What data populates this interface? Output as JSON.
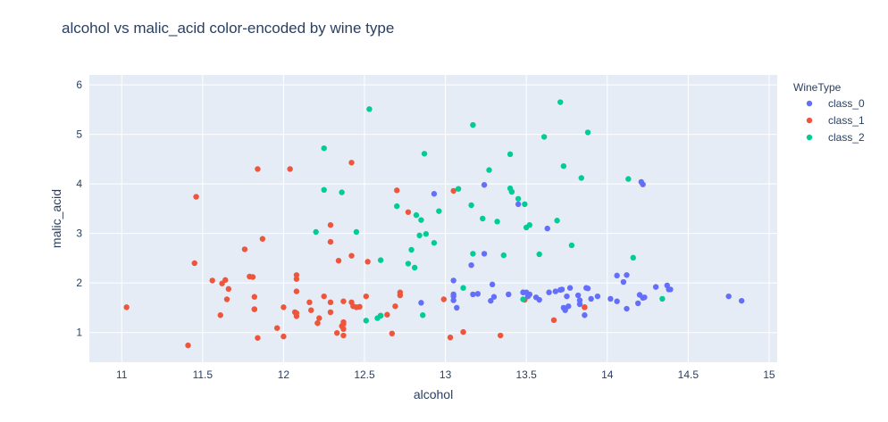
{
  "chart_data": {
    "type": "scatter",
    "title": "alcohol vs malic_acid color-encoded by wine type",
    "xlabel": "alcohol",
    "ylabel": "malic_acid",
    "xlim": [
      10.8,
      15.05
    ],
    "ylim": [
      0.4,
      6.2
    ],
    "xticks": [
      11,
      11.5,
      12,
      12.5,
      13,
      13.5,
      14,
      14.5,
      15
    ],
    "yticks": [
      1,
      2,
      3,
      4,
      5,
      6
    ],
    "grid": true,
    "legend": {
      "title": "WineType",
      "placement": "right"
    },
    "colors": {
      "class_0": "#636efa",
      "class_1": "#ef553b",
      "class_2": "#00cc96",
      "plot_bg": "#e5ecf6",
      "grid": "#ffffff",
      "text": "#2a3f5f"
    },
    "series": [
      {
        "name": "class_0",
        "x": [
          12.93,
          13.05,
          13.05,
          13.05,
          13.07,
          13.16,
          13.2,
          13.24,
          13.24,
          13.28,
          13.29,
          13.3,
          13.39,
          13.41,
          13.48,
          13.5,
          13.51,
          13.56,
          13.58,
          13.63,
          13.64,
          13.68,
          13.71,
          13.72,
          13.73,
          13.74,
          13.75,
          13.76,
          13.77,
          13.82,
          13.83,
          13.83,
          13.86,
          13.86,
          13.87,
          13.88,
          13.9,
          13.94,
          14.02,
          14.06,
          14.06,
          14.1,
          14.12,
          14.12,
          14.19,
          14.2,
          14.21,
          14.22,
          14.22,
          14.23,
          14.3,
          14.37,
          14.38,
          14.39,
          14.75,
          14.83,
          12.85,
          13.05,
          13.17,
          13.45,
          13.48,
          13.52
        ],
        "y": [
          3.8,
          1.65,
          1.73,
          2.05,
          1.5,
          2.36,
          1.78,
          2.59,
          3.98,
          1.64,
          1.97,
          1.72,
          1.77,
          3.84,
          1.81,
          1.81,
          1.73,
          1.71,
          1.66,
          3.1,
          1.81,
          1.83,
          1.86,
          1.87,
          1.5,
          1.45,
          1.73,
          1.53,
          1.9,
          1.75,
          1.57,
          1.65,
          1.35,
          1.51,
          1.9,
          1.89,
          1.68,
          1.73,
          1.68,
          1.63,
          2.15,
          2.02,
          1.48,
          2.16,
          1.59,
          1.76,
          4.04,
          1.7,
          3.99,
          1.71,
          1.92,
          1.95,
          1.87,
          1.87,
          1.73,
          1.64,
          1.6,
          1.77,
          1.77,
          3.59,
          1.81,
          1.77
        ]
      },
      {
        "name": "class_1",
        "x": [
          11.03,
          11.41,
          11.45,
          11.46,
          11.56,
          11.61,
          11.62,
          11.64,
          11.65,
          11.66,
          11.76,
          11.79,
          11.81,
          11.82,
          11.82,
          11.84,
          11.84,
          11.87,
          11.96,
          12.0,
          12.0,
          12.04,
          12.07,
          12.08,
          12.08,
          12.08,
          12.08,
          12.16,
          12.17,
          12.21,
          12.22,
          12.25,
          12.29,
          12.29,
          12.29,
          12.33,
          12.34,
          12.36,
          12.37,
          12.37,
          12.37,
          12.37,
          12.42,
          12.42,
          12.43,
          12.47,
          12.51,
          12.52,
          12.6,
          12.64,
          12.67,
          12.69,
          12.7,
          12.72,
          12.72,
          12.77,
          12.99,
          13.03,
          13.05,
          13.11,
          13.34,
          13.49,
          13.67,
          13.86,
          12.29,
          12.42,
          12.21,
          12.08,
          11.82,
          12.37,
          12.45
        ],
        "y": [
          1.51,
          0.74,
          2.4,
          3.74,
          2.05,
          1.35,
          1.99,
          2.06,
          1.67,
          1.88,
          2.68,
          2.13,
          2.12,
          1.47,
          1.72,
          0.89,
          4.3,
          2.89,
          1.09,
          0.92,
          1.51,
          4.3,
          1.41,
          1.33,
          1.83,
          2.08,
          2.16,
          1.61,
          1.45,
          1.19,
          1.29,
          1.73,
          1.61,
          3.17,
          2.83,
          0.99,
          2.45,
          1.13,
          1.07,
          0.94,
          1.17,
          1.63,
          2.55,
          4.43,
          1.53,
          1.52,
          1.73,
          2.43,
          1.34,
          1.36,
          0.98,
          1.53,
          3.87,
          1.75,
          1.81,
          3.43,
          1.67,
          0.9,
          3.86,
          1.01,
          0.94,
          1.66,
          1.25,
          1.51,
          1.41,
          1.61,
          1.19,
          1.39,
          1.47,
          1.21,
          1.51
        ]
      },
      {
        "name": "class_2",
        "x": [
          12.2,
          12.25,
          12.25,
          12.36,
          12.45,
          12.51,
          12.53,
          12.58,
          12.6,
          12.7,
          12.77,
          12.79,
          12.81,
          12.82,
          12.84,
          12.85,
          12.87,
          12.88,
          12.93,
          12.96,
          13.08,
          13.11,
          13.16,
          13.17,
          13.17,
          13.23,
          13.27,
          13.32,
          13.36,
          13.4,
          13.4,
          13.41,
          13.45,
          13.48,
          13.49,
          13.5,
          13.52,
          13.58,
          13.61,
          13.69,
          13.71,
          13.73,
          13.78,
          13.84,
          13.88,
          14.13,
          14.16,
          14.34,
          12.6,
          12.86
        ],
        "y": [
          3.03,
          3.88,
          4.72,
          3.83,
          3.03,
          1.24,
          5.51,
          1.29,
          2.46,
          3.55,
          2.39,
          2.67,
          2.31,
          3.37,
          2.96,
          3.27,
          4.61,
          2.99,
          2.81,
          3.45,
          3.9,
          1.9,
          3.57,
          2.59,
          5.19,
          3.3,
          4.28,
          3.24,
          2.56,
          3.91,
          4.6,
          3.84,
          3.7,
          1.67,
          3.59,
          3.12,
          3.17,
          2.58,
          4.95,
          3.26,
          5.65,
          4.36,
          2.76,
          4.12,
          5.04,
          4.1,
          2.51,
          1.68,
          1.34,
          1.35
        ]
      }
    ]
  }
}
